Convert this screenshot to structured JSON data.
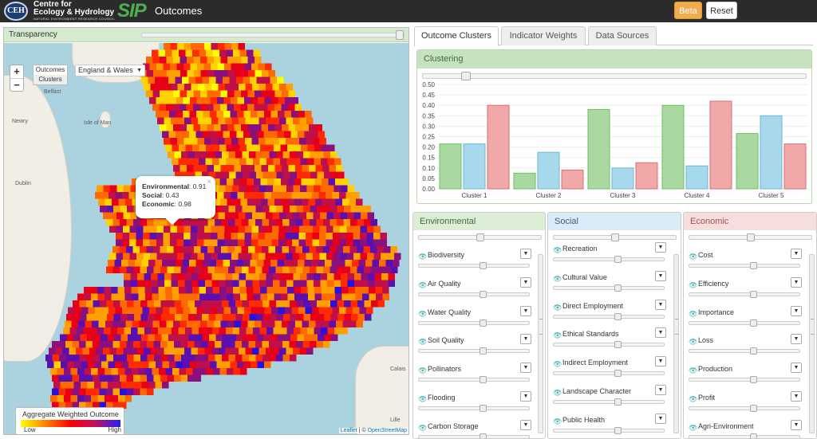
{
  "header": {
    "org_line1": "Centre for",
    "org_line2": "Ecology & Hydrology",
    "org_subline": "NATURAL ENVIRONMENT RESEARCH COUNCIL",
    "emblem": "CEH",
    "app_logo": "SIP",
    "app_title": "Outcomes",
    "beta_label": "Beta",
    "reset_label": "Reset"
  },
  "map": {
    "transparency_label": "Transparency",
    "layer_buttons": [
      "Outcomes",
      "Clusters"
    ],
    "region_select": "England & Wales",
    "place_labels": [
      "Belfast",
      "Isle of Man",
      "Dublin",
      "Newry",
      "Calais",
      "Lille"
    ],
    "popup": {
      "env_label": "Environmental",
      "env_value": "0.91",
      "soc_label": "Social",
      "soc_value": "0.43",
      "eco_label": "Economic",
      "eco_value": "0.98"
    },
    "legend": {
      "title": "Aggregate Weighted Outcome",
      "low": "Low",
      "high": "High"
    },
    "attribution_leaflet": "Leaflet",
    "attribution_osm": "OpenStreetMap"
  },
  "tabs": [
    "Outcome Clusters",
    "Indicator Weights",
    "Data Sources"
  ],
  "clustering": {
    "title": "Clustering"
  },
  "chart_data": {
    "type": "bar",
    "categories": [
      "Cluster 1",
      "Cluster 2",
      "Cluster 3",
      "Cluster 4",
      "Cluster 5"
    ],
    "series": [
      {
        "name": "Environmental",
        "color": "#a9d8a0",
        "values": [
          0.215,
          0.075,
          0.38,
          0.4,
          0.265
        ]
      },
      {
        "name": "Social",
        "color": "#a8d8ec",
        "values": [
          0.215,
          0.175,
          0.1,
          0.11,
          0.35
        ]
      },
      {
        "name": "Economic",
        "color": "#f0a8a8",
        "values": [
          0.4,
          0.09,
          0.125,
          0.42,
          0.215
        ]
      }
    ],
    "ylim": [
      0,
      0.5
    ],
    "yticks": [
      "0.50",
      "0.45",
      "0.40",
      "0.35",
      "0.30",
      "0.25",
      "0.20",
      "0.15",
      "0.10",
      "0.05",
      "0.00"
    ]
  },
  "categories": {
    "environmental": {
      "title": "Environmental",
      "indicators": [
        "Biodiversity",
        "Air Quality",
        "Water Quality",
        "Soil Quality",
        "Pollinators",
        "Flooding",
        "Carbon Storage"
      ]
    },
    "social": {
      "title": "Social",
      "indicators": [
        "Recreation",
        "Cultural Value",
        "Direct Employment",
        "Ethical Standards",
        "Indirect Employment",
        "Landscape Character",
        "Public Health"
      ]
    },
    "economic": {
      "title": "Economic",
      "indicators": [
        "Cost",
        "Efficiency",
        "Importance",
        "Loss",
        "Production",
        "Profit",
        "Agri-Environment"
      ]
    }
  },
  "colors": {
    "env": "#dcefd6",
    "soc": "#d9ecf7",
    "eco": "#f7dede"
  }
}
